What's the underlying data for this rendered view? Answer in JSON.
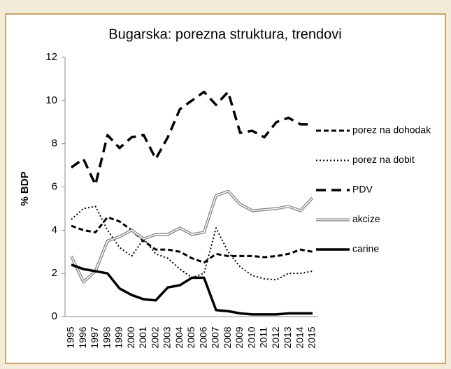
{
  "chart_data": {
    "type": "line",
    "title": "Bugarska: porezna struktura, trendovi",
    "y_label": "% BDP",
    "categories": [
      "1995",
      "1996",
      "1997",
      "1998",
      "1999",
      "2000",
      "2001",
      "2002",
      "2003",
      "2004",
      "2005",
      "2006",
      "2007",
      "2008",
      "2009",
      "2010",
      "2011",
      "2012",
      "2013",
      "2014",
      "2015"
    ],
    "ylim": [
      0,
      12
    ],
    "yticks": [
      0,
      2,
      4,
      6,
      8,
      10,
      12
    ],
    "grid": false,
    "legend": "right",
    "series": [
      {
        "name": "porez na dohodak",
        "color": "#000000",
        "style": "dashed",
        "values": [
          4.2,
          4.0,
          3.9,
          4.6,
          4.4,
          4.0,
          3.5,
          3.1,
          3.1,
          3.0,
          2.7,
          2.5,
          2.9,
          2.8,
          2.8,
          2.8,
          2.75,
          2.8,
          2.9,
          3.1,
          3.0
        ]
      },
      {
        "name": "porez na dobit",
        "color": "#000000",
        "style": "dotted",
        "values": [
          4.5,
          5.0,
          5.1,
          4.0,
          3.2,
          2.8,
          3.6,
          2.9,
          2.7,
          2.2,
          1.8,
          2.0,
          4.1,
          3.0,
          2.3,
          1.9,
          1.75,
          1.7,
          2.0,
          2.0,
          2.1
        ]
      },
      {
        "name": "PDV",
        "color": "#000000",
        "style": "longdash",
        "values": [
          6.9,
          7.3,
          6.1,
          8.4,
          7.8,
          8.3,
          8.4,
          7.3,
          8.3,
          9.6,
          10.0,
          10.4,
          9.8,
          10.4,
          8.5,
          8.6,
          8.3,
          9.0,
          9.2,
          8.9,
          8.9
        ]
      },
      {
        "name": "akcize",
        "color": "#808080",
        "style": "double",
        "values": [
          2.8,
          1.6,
          2.1,
          3.5,
          3.7,
          4.0,
          3.6,
          3.8,
          3.8,
          4.1,
          3.8,
          3.9,
          5.6,
          5.8,
          5.2,
          4.9,
          4.95,
          5.0,
          5.1,
          4.9,
          5.5
        ]
      },
      {
        "name": "carine",
        "color": "#000000",
        "style": "thick",
        "values": [
          2.4,
          2.2,
          2.1,
          2.0,
          1.3,
          1.0,
          0.8,
          0.75,
          1.35,
          1.45,
          1.8,
          1.8,
          0.3,
          0.25,
          0.15,
          0.1,
          0.1,
          0.1,
          0.15,
          0.15,
          0.15
        ]
      }
    ]
  }
}
